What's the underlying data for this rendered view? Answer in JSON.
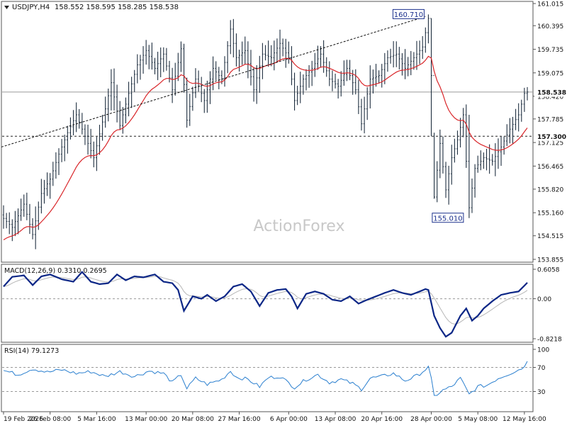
{
  "header": {
    "symbol": "USDJPY,H4",
    "ohlc": "158.552 158.595 158.285 158.538"
  },
  "watermark": "ActionForex",
  "colors": {
    "candle": "#1f2f40",
    "ma": "#d9262a",
    "macd": "#0b2686",
    "signal": "#b7b7b7",
    "rsi": "#2a7fcf",
    "box": "#1a2f8c",
    "grid": "#999999"
  },
  "chart_data": [
    {
      "type": "candlestick",
      "name": "price",
      "ylim": [
        153.855,
        161.015
      ],
      "y_ticks": [
        "161.015",
        "160.395",
        "159.735",
        "159.075",
        "158.420",
        "157.785",
        "157.125",
        "156.465",
        "155.820",
        "155.160",
        "154.515",
        "153.855"
      ],
      "y_tick_values": [
        161.015,
        160.395,
        159.735,
        159.075,
        158.42,
        157.785,
        157.125,
        156.465,
        155.82,
        155.16,
        154.515,
        153.855
      ],
      "current_price": "158.538",
      "current_price_value": 158.538,
      "horizontal_level": "157.300",
      "horizontal_level_value": 157.3,
      "high_label": "160.710",
      "high_value": 160.71,
      "low_label": "155.010",
      "low_value": 155.01,
      "trendline": {
        "from": [
          0,
          157.0
        ],
        "to": [
          145,
          160.65
        ]
      },
      "moving_average": true,
      "n_bars": 181,
      "anchors": [
        [
          0,
          155.0
        ],
        [
          3,
          154.75
        ],
        [
          7,
          155.4
        ],
        [
          10,
          154.55
        ],
        [
          13,
          155.7
        ],
        [
          16,
          156.1
        ],
        [
          19,
          156.8
        ],
        [
          22,
          157.4
        ],
        [
          25,
          157.9
        ],
        [
          28,
          157.3
        ],
        [
          31,
          156.7
        ],
        [
          34,
          157.7
        ],
        [
          37,
          158.8
        ],
        [
          40,
          157.6
        ],
        [
          43,
          158.5
        ],
        [
          46,
          159.3
        ],
        [
          49,
          159.7
        ],
        [
          52,
          159.2
        ],
        [
          55,
          159.6
        ],
        [
          58,
          158.6
        ],
        [
          61,
          159.75
        ],
        [
          63,
          157.75
        ],
        [
          66,
          158.9
        ],
        [
          69,
          158.3
        ],
        [
          72,
          159.2
        ],
        [
          75,
          158.9
        ],
        [
          78,
          160.3
        ],
        [
          80,
          159.5
        ],
        [
          83,
          159.7
        ],
        [
          86,
          158.6
        ],
        [
          89,
          159.6
        ],
        [
          92,
          159.5
        ],
        [
          95,
          159.9
        ],
        [
          98,
          159.5
        ],
        [
          100,
          158.3
        ],
        [
          103,
          158.9
        ],
        [
          106,
          159.2
        ],
        [
          109,
          159.6
        ],
        [
          112,
          158.9
        ],
        [
          115,
          158.7
        ],
        [
          118,
          159.2
        ],
        [
          121,
          158.6
        ],
        [
          123,
          157.65
        ],
        [
          126,
          158.9
        ],
        [
          129,
          159.0
        ],
        [
          132,
          159.5
        ],
        [
          135,
          159.6
        ],
        [
          138,
          159.2
        ],
        [
          141,
          159.5
        ],
        [
          144,
          159.8
        ],
        [
          146,
          160.6
        ],
        [
          147,
          159.0
        ],
        [
          148,
          155.6
        ],
        [
          150,
          157.1
        ],
        [
          152,
          155.8
        ],
        [
          154,
          156.7
        ],
        [
          156,
          157.2
        ],
        [
          158,
          157.9
        ],
        [
          160,
          155.3
        ],
        [
          162,
          156.4
        ],
        [
          165,
          156.7
        ],
        [
          168,
          156.6
        ],
        [
          171,
          157.0
        ],
        [
          174,
          157.5
        ],
        [
          177,
          157.9
        ],
        [
          179,
          158.5
        ],
        [
          180,
          158.54
        ]
      ],
      "special_bars": [
        {
          "i": 146,
          "hi": 160.71,
          "lo": 159.9
        },
        {
          "i": 147,
          "hi": 160.6,
          "lo": 157.3
        },
        {
          "i": 148,
          "hi": 157.4,
          "lo": 155.55
        },
        {
          "i": 160,
          "hi": 157.9,
          "lo": 155.01
        }
      ]
    },
    {
      "type": "line",
      "name": "MACD(12,26,9) 0.3310 0.2695",
      "ylim": [
        -0.8218,
        0.6058
      ],
      "y_ticks": [
        "0.6058",
        "0.00",
        "-0.8218"
      ],
      "y_tick_values": [
        0.6058,
        0.0,
        -0.8218
      ],
      "zero_line": 0.0,
      "anchors": [
        [
          0,
          0.25
        ],
        [
          3,
          0.45
        ],
        [
          7,
          0.48
        ],
        [
          10,
          0.28
        ],
        [
          13,
          0.46
        ],
        [
          16,
          0.5
        ],
        [
          20,
          0.4
        ],
        [
          24,
          0.35
        ],
        [
          27,
          0.55
        ],
        [
          30,
          0.35
        ],
        [
          33,
          0.3
        ],
        [
          36,
          0.32
        ],
        [
          39,
          0.5
        ],
        [
          42,
          0.38
        ],
        [
          45,
          0.46
        ],
        [
          48,
          0.44
        ],
        [
          52,
          0.5
        ],
        [
          55,
          0.35
        ],
        [
          58,
          0.32
        ],
        [
          60,
          0.18
        ],
        [
          62,
          -0.25
        ],
        [
          65,
          0.05
        ],
        [
          68,
          0.0
        ],
        [
          70,
          0.08
        ],
        [
          73,
          -0.05
        ],
        [
          76,
          0.05
        ],
        [
          79,
          0.25
        ],
        [
          82,
          0.3
        ],
        [
          85,
          0.15
        ],
        [
          88,
          -0.15
        ],
        [
          91,
          0.12
        ],
        [
          94,
          0.18
        ],
        [
          97,
          0.2
        ],
        [
          99,
          0.05
        ],
        [
          101,
          -0.2
        ],
        [
          104,
          0.1
        ],
        [
          107,
          0.15
        ],
        [
          110,
          0.1
        ],
        [
          113,
          -0.02
        ],
        [
          116,
          -0.05
        ],
        [
          119,
          0.05
        ],
        [
          122,
          -0.1
        ],
        [
          125,
          -0.02
        ],
        [
          128,
          0.05
        ],
        [
          131,
          0.12
        ],
        [
          134,
          0.18
        ],
        [
          137,
          0.12
        ],
        [
          140,
          0.08
        ],
        [
          143,
          0.15
        ],
        [
          145,
          0.2
        ],
        [
          146,
          0.18
        ],
        [
          148,
          -0.35
        ],
        [
          150,
          -0.6
        ],
        [
          152,
          -0.78
        ],
        [
          154,
          -0.7
        ],
        [
          157,
          -0.35
        ],
        [
          159,
          -0.2
        ],
        [
          161,
          -0.45
        ],
        [
          163,
          -0.35
        ],
        [
          165,
          -0.2
        ],
        [
          168,
          -0.05
        ],
        [
          171,
          0.08
        ],
        [
          174,
          0.12
        ],
        [
          177,
          0.15
        ],
        [
          180,
          0.33
        ]
      ]
    },
    {
      "type": "line",
      "name": "RSI(14) 79.1273",
      "ylim": [
        0,
        100
      ],
      "y_ticks": [
        "100",
        "70",
        "30"
      ],
      "y_tick_values": [
        100,
        70,
        30
      ],
      "levels": [
        70,
        30
      ],
      "anchors": [
        [
          0,
          65
        ],
        [
          5,
          58
        ],
        [
          10,
          68
        ],
        [
          15,
          62
        ],
        [
          20,
          66
        ],
        [
          25,
          60
        ],
        [
          30,
          63
        ],
        [
          35,
          55
        ],
        [
          40,
          63
        ],
        [
          45,
          55
        ],
        [
          50,
          64
        ],
        [
          55,
          60
        ],
        [
          58,
          45
        ],
        [
          61,
          58
        ],
        [
          63,
          35
        ],
        [
          66,
          52
        ],
        [
          70,
          42
        ],
        [
          75,
          50
        ],
        [
          78,
          64
        ],
        [
          80,
          54
        ],
        [
          84,
          50
        ],
        [
          88,
          38
        ],
        [
          91,
          53
        ],
        [
          95,
          55
        ],
        [
          100,
          37
        ],
        [
          104,
          50
        ],
        [
          108,
          58
        ],
        [
          112,
          45
        ],
        [
          116,
          50
        ],
        [
          120,
          43
        ],
        [
          123,
          34
        ],
        [
          126,
          52
        ],
        [
          130,
          55
        ],
        [
          134,
          60
        ],
        [
          138,
          48
        ],
        [
          142,
          56
        ],
        [
          146,
          70
        ],
        [
          147,
          50
        ],
        [
          148,
          22
        ],
        [
          151,
          32
        ],
        [
          154,
          38
        ],
        [
          157,
          52
        ],
        [
          160,
          25
        ],
        [
          163,
          38
        ],
        [
          166,
          40
        ],
        [
          170,
          52
        ],
        [
          174,
          60
        ],
        [
          178,
          68
        ],
        [
          180,
          79
        ]
      ]
    }
  ],
  "x_axis": {
    "labels": [
      "19 Feb 2026",
      "26 Feb 08:00",
      "5 Mar 16:00",
      "13 Mar 00:00",
      "20 Mar 08:00",
      "27 Mar 16:00",
      "6 Apr 00:00",
      "13 Apr 08:00",
      "20 Apr 16:00",
      "28 Apr 00:00",
      "5 May 08:00",
      "12 May 16:00"
    ],
    "label_bars": [
      0,
      16,
      32,
      49,
      65,
      81,
      98,
      114,
      130,
      147,
      163,
      179
    ]
  }
}
